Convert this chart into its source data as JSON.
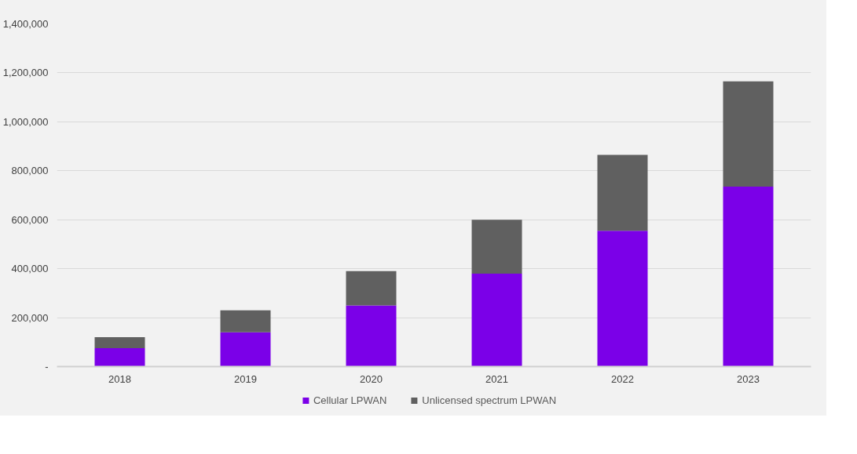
{
  "chart_data": {
    "type": "bar",
    "stacked": true,
    "categories": [
      "2018",
      "2019",
      "2020",
      "2021",
      "2022",
      "2023"
    ],
    "series": [
      {
        "name": "Cellular LPWAN",
        "color": "#7b00e8",
        "values": [
          75000,
          140000,
          250000,
          380000,
          555000,
          735000
        ]
      },
      {
        "name": "Unlicensed spectrum LPWAN",
        "color": "#606060",
        "values": [
          45000,
          90000,
          140000,
          220000,
          310000,
          430000
        ]
      }
    ],
    "ylim": [
      0,
      1400000
    ],
    "yticks": [
      {
        "value": 0,
        "label": "-"
      },
      {
        "value": 200000,
        "label": "200,000"
      },
      {
        "value": 400000,
        "label": "400,000"
      },
      {
        "value": 600000,
        "label": "600,000"
      },
      {
        "value": 800000,
        "label": "800,000"
      },
      {
        "value": 1000000,
        "label": "1,000,000"
      },
      {
        "value": 1200000,
        "label": "1,200,000"
      },
      {
        "value": 1400000,
        "label": "1,400,000"
      }
    ],
    "grid": "y",
    "legend": "bottom"
  }
}
